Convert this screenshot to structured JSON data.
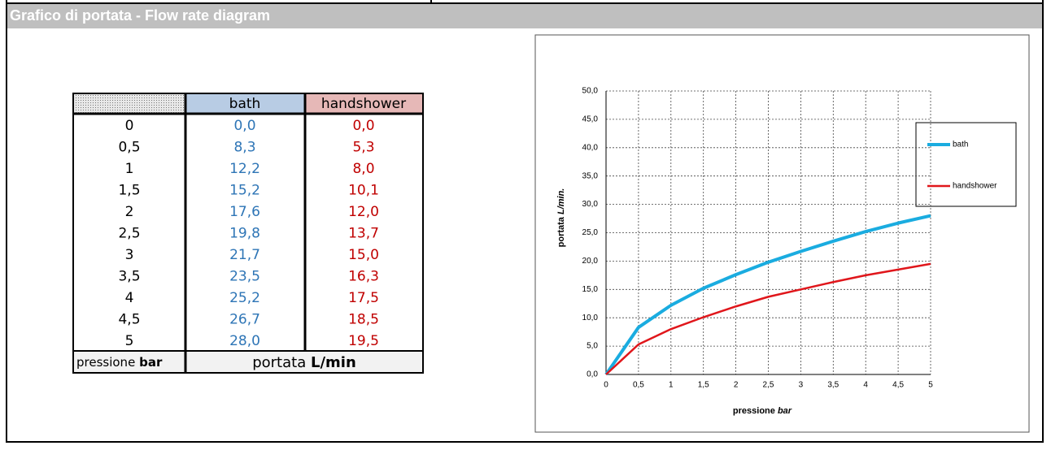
{
  "header": {
    "title": "Grafico di portata - Flow rate diagram"
  },
  "table": {
    "columns": [
      "bath",
      "handshower"
    ],
    "rows": [
      [
        "0",
        "0,0",
        "0,0"
      ],
      [
        "0,5",
        "8,3",
        "5,3"
      ],
      [
        "1",
        "12,2",
        "8,0"
      ],
      [
        "1,5",
        "15,2",
        "10,1"
      ],
      [
        "2",
        "17,6",
        "12,0"
      ],
      [
        "2,5",
        "19,8",
        "13,7"
      ],
      [
        "3",
        "21,7",
        "15,0"
      ],
      [
        "3,5",
        "23,5",
        "16,3"
      ],
      [
        "4",
        "25,2",
        "17,5"
      ],
      [
        "4,5",
        "26,7",
        "18,5"
      ],
      [
        "5",
        "28,0",
        "19,5"
      ]
    ],
    "footer": {
      "pressure": "pressione",
      "pressure_unit": "bar",
      "flow": "portata",
      "flow_unit": "L/min"
    }
  },
  "chart_data": {
    "type": "line",
    "x": [
      0,
      0.5,
      1,
      1.5,
      2,
      2.5,
      3,
      3.5,
      4,
      4.5,
      5
    ],
    "series": [
      {
        "name": "bath",
        "color": "#1aace0",
        "values": [
          0,
          8.3,
          12.2,
          15.2,
          17.6,
          19.8,
          21.7,
          23.5,
          25.2,
          26.7,
          28.0
        ]
      },
      {
        "name": "handshower",
        "color": "#e0161b",
        "values": [
          0,
          5.3,
          8.0,
          10.1,
          12.0,
          13.7,
          15.0,
          16.3,
          17.5,
          18.5,
          19.5
        ]
      }
    ],
    "xlabel": "pressione",
    "xlabel_unit": "bar",
    "ylabel": "portata",
    "ylabel_unit": "L/min.",
    "xlim": [
      0,
      5
    ],
    "ylim": [
      0,
      50
    ],
    "xticks": [
      0,
      {
        "value": 0.5,
        "label": "0,5"
      },
      1,
      {
        "value": 1.5,
        "label": "1,5"
      },
      2,
      {
        "value": 2.5,
        "label": "2,5"
      },
      3,
      {
        "value": 3.5,
        "label": "3,5"
      },
      4,
      {
        "value": 4.5,
        "label": "4,5"
      },
      5
    ],
    "yticks": [
      {
        "value": 0,
        "label": "0,0"
      },
      {
        "value": 5,
        "label": "5,0"
      },
      {
        "value": 10,
        "label": "10,0"
      },
      {
        "value": 15,
        "label": "15,0"
      },
      {
        "value": 20,
        "label": "20,0"
      },
      {
        "value": 25,
        "label": "25,0"
      },
      {
        "value": 30,
        "label": "30,0"
      },
      {
        "value": 35,
        "label": "35,0"
      },
      {
        "value": 40,
        "label": "40,0"
      },
      {
        "value": 45,
        "label": "45,0"
      },
      {
        "value": 50,
        "label": "50,0"
      }
    ],
    "grid": true
  }
}
